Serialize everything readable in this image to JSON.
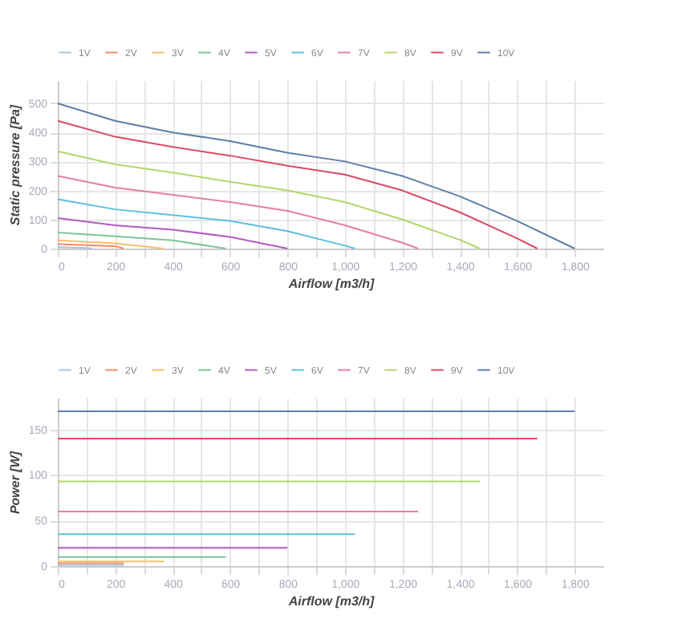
{
  "chart_data": [
    {
      "type": "line",
      "xlabel": "Airflow [m3/h]",
      "ylabel": "Static pressure [Pa]",
      "legend": "top left",
      "grid": true,
      "marker": "none",
      "line_style": "solid",
      "xlim": [
        0,
        1900
      ],
      "ylim": [
        0,
        580
      ],
      "xticks": [
        0,
        {
          "value": 100,
          "label": null
        },
        200,
        {
          "value": 300,
          "label": null
        },
        400,
        {
          "value": 500,
          "label": null
        },
        600,
        {
          "value": 700,
          "label": null
        },
        800,
        {
          "value": 900,
          "label": null
        },
        {
          "value": 1000,
          "label": "1,000"
        },
        {
          "value": 1100,
          "label": null
        },
        {
          "value": 1200,
          "label": "1,200"
        },
        {
          "value": 1300,
          "label": null
        },
        {
          "value": 1400,
          "label": "1,400"
        },
        {
          "value": 1500,
          "label": null
        },
        {
          "value": 1600,
          "label": "1,600"
        },
        {
          "value": 1700,
          "label": null
        },
        {
          "value": 1800,
          "label": "1,800"
        }
      ],
      "yticks": [
        0,
        100,
        200,
        300,
        400,
        500
      ],
      "series": [
        {
          "name": "1V",
          "color": "#a9c4e4",
          "x": [
            0,
            100,
            120
          ],
          "values": [
            5,
            2,
            0
          ]
        },
        {
          "name": "2V",
          "color": "#f28b6c",
          "x": [
            0,
            200,
            230
          ],
          "values": [
            15,
            8,
            0
          ]
        },
        {
          "name": "3V",
          "color": "#f5c06b",
          "x": [
            0,
            200,
            370
          ],
          "values": [
            28,
            18,
            0
          ]
        },
        {
          "name": "4V",
          "color": "#7cc49a",
          "x": [
            0,
            200,
            400,
            585
          ],
          "values": [
            55,
            42,
            28,
            0
          ]
        },
        {
          "name": "5V",
          "color": "#b05cc0",
          "x": [
            0,
            200,
            400,
            600,
            800
          ],
          "values": [
            105,
            80,
            65,
            40,
            0
          ]
        },
        {
          "name": "6V",
          "color": "#5bc0de",
          "x": [
            0,
            200,
            400,
            600,
            800,
            1000,
            1035
          ],
          "values": [
            170,
            135,
            115,
            95,
            60,
            10,
            0
          ]
        },
        {
          "name": "7V",
          "color": "#e27fa8",
          "x": [
            0,
            200,
            400,
            600,
            800,
            1000,
            1200,
            1255
          ],
          "values": [
            250,
            210,
            185,
            160,
            130,
            80,
            20,
            0
          ]
        },
        {
          "name": "8V",
          "color": "#b5d56a",
          "x": [
            0,
            200,
            400,
            600,
            800,
            1000,
            1200,
            1400,
            1470
          ],
          "values": [
            335,
            290,
            262,
            230,
            200,
            160,
            100,
            30,
            0
          ]
        },
        {
          "name": "9V",
          "color": "#d94a6a",
          "x": [
            0,
            200,
            400,
            600,
            800,
            1000,
            1200,
            1400,
            1600,
            1670
          ],
          "values": [
            440,
            385,
            350,
            320,
            285,
            255,
            200,
            125,
            35,
            0
          ]
        },
        {
          "name": "10V",
          "color": "#5e7ea8",
          "x": [
            0,
            200,
            400,
            600,
            800,
            1000,
            1200,
            1400,
            1600,
            1800
          ],
          "values": [
            500,
            440,
            400,
            370,
            330,
            300,
            250,
            180,
            95,
            0
          ]
        }
      ]
    },
    {
      "type": "line",
      "xlabel": "Airflow [m3/h]",
      "ylabel": "Power [W]",
      "legend": "top left",
      "grid": true,
      "marker": "none",
      "line_style": "solid",
      "xlim": [
        0,
        1900
      ],
      "ylim": [
        0,
        185
      ],
      "xticks": [
        0,
        {
          "value": 100,
          "label": null
        },
        200,
        {
          "value": 300,
          "label": null
        },
        400,
        {
          "value": 500,
          "label": null
        },
        600,
        {
          "value": 700,
          "label": null
        },
        800,
        {
          "value": 900,
          "label": null
        },
        {
          "value": 1000,
          "label": "1,000"
        },
        {
          "value": 1100,
          "label": null
        },
        {
          "value": 1200,
          "label": "1,200"
        },
        {
          "value": 1300,
          "label": null
        },
        {
          "value": 1400,
          "label": "1,400"
        },
        {
          "value": 1500,
          "label": null
        },
        {
          "value": 1600,
          "label": "1,600"
        },
        {
          "value": 1700,
          "label": null
        },
        {
          "value": 1800,
          "label": "1,800"
        }
      ],
      "yticks": [
        0,
        50,
        100,
        150
      ],
      "series": [
        {
          "name": "1V",
          "color": "#a9c4e4",
          "x": [
            0,
            230
          ],
          "values": [
            1,
            1
          ]
        },
        {
          "name": "2V",
          "color": "#f28b6c",
          "x": [
            0,
            230
          ],
          "values": [
            3,
            3
          ]
        },
        {
          "name": "3V",
          "color": "#f5c06b",
          "x": [
            0,
            370
          ],
          "values": [
            5,
            5
          ]
        },
        {
          "name": "4V",
          "color": "#7cc49a",
          "x": [
            0,
            585
          ],
          "values": [
            10,
            10
          ]
        },
        {
          "name": "5V",
          "color": "#b05cc0",
          "x": [
            0,
            800
          ],
          "values": [
            20,
            20
          ]
        },
        {
          "name": "6V",
          "color": "#5bc0de",
          "x": [
            0,
            1035
          ],
          "values": [
            35,
            35
          ]
        },
        {
          "name": "7V",
          "color": "#e27fa8",
          "x": [
            0,
            1255
          ],
          "values": [
            60,
            60
          ]
        },
        {
          "name": "8V",
          "color": "#b5d56a",
          "x": [
            0,
            1470
          ],
          "values": [
            93,
            93
          ]
        },
        {
          "name": "9V",
          "color": "#d94a6a",
          "x": [
            0,
            1670
          ],
          "values": [
            140,
            140
          ]
        },
        {
          "name": "10V",
          "color": "#5e7ea8",
          "x": [
            0,
            1800
          ],
          "values": [
            170,
            170
          ]
        }
      ]
    }
  ]
}
